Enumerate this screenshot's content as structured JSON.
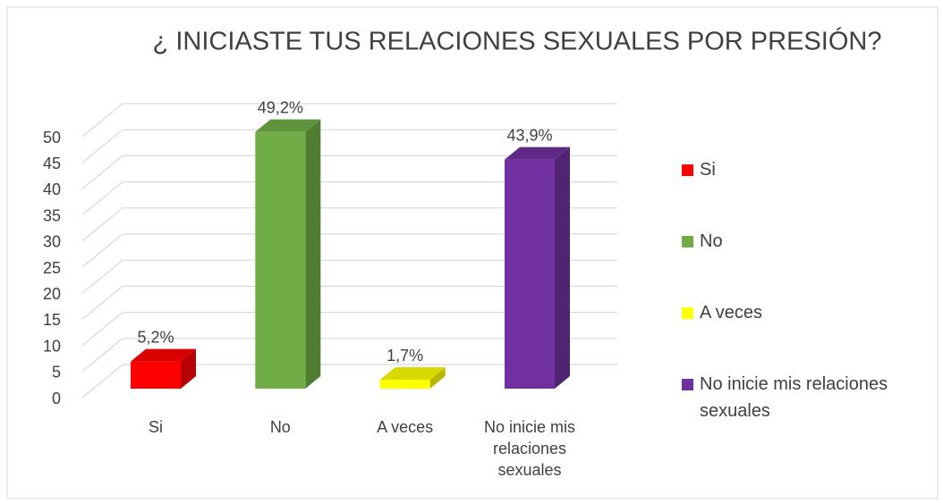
{
  "chart_data": {
    "type": "bar3d",
    "title": "¿ INICIASTE TUS RELACIONES SEXUALES POR PRESIÓN?",
    "categories": [
      "Si",
      "No",
      "A veces",
      "No inicie mis relaciones sexuales"
    ],
    "values": [
      5.2,
      49.2,
      1.7,
      43.9
    ],
    "value_labels": [
      "5,2%",
      "49,2%",
      "1,7%",
      "43,9%"
    ],
    "colors": [
      "#ff0000",
      "#70ad47",
      "#ffff00",
      "#7030a0"
    ],
    "ylim": [
      0,
      50
    ],
    "yticks": [
      0,
      5,
      10,
      15,
      20,
      25,
      30,
      35,
      40,
      45,
      50
    ],
    "grid": true,
    "legend": "right"
  }
}
